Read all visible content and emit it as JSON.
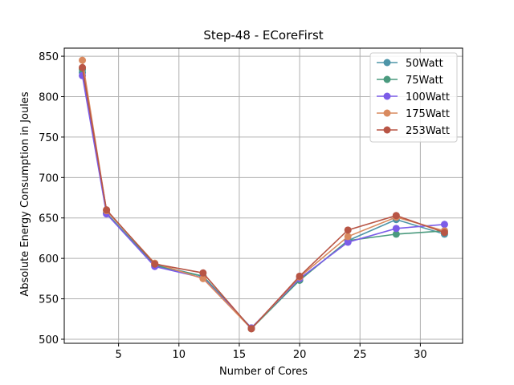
{
  "chart_data": {
    "type": "line",
    "title": "Step-48 - ECoreFirst",
    "xlabel": "Number of Cores",
    "ylabel": "Absolute Energy Consumption in Joules",
    "xlim": [
      0.5,
      33.5
    ],
    "ylim": [
      495,
      860
    ],
    "xticks": [
      5,
      10,
      15,
      20,
      25,
      30
    ],
    "yticks": [
      500,
      550,
      600,
      650,
      700,
      750,
      800,
      850
    ],
    "grid": true,
    "legend_position": "top-right",
    "x": [
      2,
      4,
      8,
      12,
      16,
      20,
      24,
      28,
      32
    ],
    "series": [
      {
        "name": "50Watt",
        "color": "#4e95a8",
        "values": [
          830,
          656,
          592,
          578,
          514,
          573,
          622,
          648,
          630
        ]
      },
      {
        "name": "75Watt",
        "color": "#4a9a7e",
        "values": [
          834,
          656,
          591,
          578,
          513,
          573,
          622,
          630,
          634
        ]
      },
      {
        "name": "100Watt",
        "color": "#7b5ce8",
        "values": [
          826,
          655,
          590,
          576,
          514,
          575,
          620,
          637,
          642
        ]
      },
      {
        "name": "175Watt",
        "color": "#d98a5f",
        "values": [
          845,
          659,
          594,
          575,
          513,
          577,
          627,
          651,
          634
        ]
      },
      {
        "name": "253Watt",
        "color": "#b85545",
        "values": [
          836,
          660,
          593,
          582,
          513,
          578,
          635,
          653,
          632
        ]
      }
    ]
  }
}
